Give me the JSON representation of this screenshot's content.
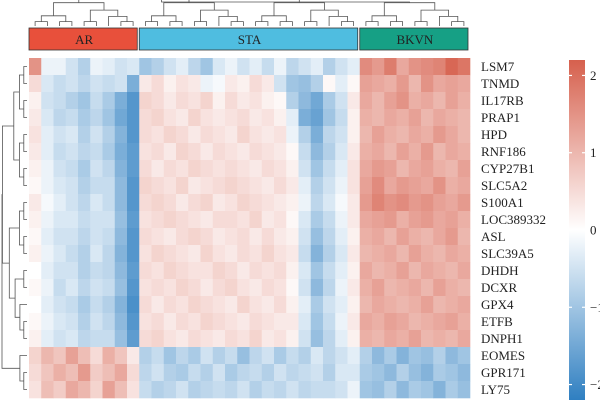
{
  "chart_data": {
    "type": "heatmap",
    "title": "",
    "groups": [
      {
        "label": "AR",
        "color": "#e8503b",
        "count": 9
      },
      {
        "label": "STA",
        "color": "#4fbde0",
        "count": 18
      },
      {
        "label": "BKVN",
        "color": "#16a085",
        "count": 9
      }
    ],
    "rows": [
      "LSM7",
      "TNMD",
      "IL17RB",
      "PRAP1",
      "HPD",
      "RNF186",
      "CYP27B1",
      "SLC5A2",
      "S100A1",
      "LOC389332",
      "ASL",
      "SLC39A5",
      "DHDH",
      "DCXR",
      "GPX4",
      "ETFB",
      "DNPH1",
      "EOMES",
      "GPR171",
      "LY75"
    ],
    "columns": 36,
    "zlim": [
      -2.2,
      2.2
    ],
    "colorbar": {
      "ticks": [
        "2",
        "1",
        "0",
        "−1",
        "−2"
      ],
      "tick_values": [
        2,
        1,
        0,
        -1,
        -2
      ],
      "colors": {
        "low": "#2f7fc1",
        "mid": "#ffffff",
        "high": "#d6604d"
      }
    },
    "values": [
      [
        1.5,
        -0.2,
        -0.2,
        -0.5,
        -0.8,
        -0.2,
        -0.3,
        -0.5,
        -0.4,
        -1.0,
        -0.8,
        -0.5,
        -0.3,
        -0.7,
        -1.0,
        -0.4,
        -0.2,
        -0.5,
        -0.3,
        -0.6,
        -0.2,
        -0.7,
        -0.5,
        -0.3,
        -0.8,
        -0.5,
        -0.3,
        1.6,
        1.4,
        1.8,
        1.2,
        1.5,
        1.6,
        1.7,
        2.1,
        1.9
      ],
      [
        0.5,
        -0.4,
        -0.6,
        -0.5,
        -0.7,
        -0.5,
        -0.6,
        -0.5,
        -1.4,
        0.3,
        0.5,
        0.2,
        0.4,
        0.3,
        -0.2,
        -0.1,
        0.3,
        0.2,
        0.5,
        0.3,
        -0.5,
        -1.0,
        -1.1,
        -0.8,
        0.1,
        -0.3,
        0.1,
        1.3,
        1.2,
        1.1,
        1.4,
        1.0,
        1.5,
        1.2,
        1.3,
        1.2
      ],
      [
        0.2,
        -0.5,
        -0.6,
        -0.8,
        -1.0,
        -0.6,
        -0.9,
        -1.4,
        -1.8,
        0.6,
        0.5,
        0.3,
        0.5,
        0.4,
        0.6,
        0.2,
        0.5,
        0.3,
        0.4,
        0.2,
        0.1,
        -0.8,
        -1.2,
        -1.5,
        -0.9,
        -0.5,
        0.3,
        1.2,
        1.0,
        1.3,
        1.5,
        1.1,
        1.2,
        1.0,
        1.3,
        1.1
      ],
      [
        0.3,
        -0.4,
        -0.7,
        -0.6,
        -0.9,
        -0.7,
        -1.0,
        -1.5,
        -1.8,
        0.5,
        0.6,
        0.4,
        0.3,
        0.6,
        0.4,
        0.3,
        0.4,
        0.5,
        0.3,
        0.4,
        0.2,
        -0.3,
        -1.4,
        -1.6,
        -1.0,
        -0.6,
        0.2,
        1.1,
        1.0,
        1.2,
        1.1,
        1.3,
        1.0,
        1.2,
        1.1,
        1.0
      ],
      [
        0.4,
        -0.3,
        -0.5,
        -0.4,
        -0.8,
        -0.5,
        -0.8,
        -1.3,
        -1.8,
        0.5,
        0.4,
        0.6,
        0.5,
        0.3,
        0.5,
        0.4,
        0.3,
        0.6,
        0.4,
        0.3,
        0.4,
        -0.2,
        -0.8,
        -1.4,
        -0.7,
        -0.5,
        0.2,
        1.0,
        1.3,
        1.1,
        1.0,
        1.2,
        1.1,
        1.4,
        1.2,
        1.0
      ],
      [
        0.3,
        -0.3,
        -0.6,
        -0.5,
        -0.7,
        -0.6,
        -0.9,
        -1.4,
        -1.7,
        0.4,
        0.5,
        0.3,
        0.6,
        0.5,
        0.3,
        0.5,
        0.4,
        0.3,
        0.5,
        0.4,
        0.3,
        0.1,
        -0.6,
        -1.2,
        -0.8,
        -0.4,
        0.3,
        1.1,
        1.2,
        1.0,
        1.3,
        1.1,
        1.4,
        1.0,
        1.2,
        1.1
      ],
      [
        0.2,
        -0.2,
        -0.5,
        -0.6,
        -0.9,
        -0.5,
        -0.7,
        -1.3,
        -1.7,
        0.5,
        0.3,
        0.5,
        0.4,
        0.6,
        0.5,
        0.4,
        0.5,
        0.4,
        0.3,
        0.5,
        0.4,
        0.2,
        -0.5,
        -1.0,
        -0.6,
        -0.3,
        0.4,
        1.2,
        1.4,
        1.3,
        1.0,
        1.2,
        1.3,
        1.1,
        1.0,
        1.3
      ],
      [
        0.1,
        -0.2,
        -0.4,
        -0.5,
        -0.8,
        -0.6,
        -0.6,
        -1.2,
        -1.8,
        0.6,
        0.5,
        0.4,
        0.6,
        0.3,
        0.4,
        0.5,
        0.6,
        0.5,
        0.4,
        0.3,
        0.5,
        0.3,
        -0.3,
        -0.8,
        -0.5,
        -0.2,
        0.4,
        1.3,
        1.6,
        1.2,
        1.4,
        1.3,
        1.2,
        1.5,
        1.1,
        1.2
      ],
      [
        0.3,
        -0.1,
        -0.3,
        -0.5,
        -0.7,
        -0.4,
        -0.6,
        -1.2,
        -1.8,
        0.5,
        0.6,
        0.5,
        0.3,
        0.5,
        0.6,
        0.3,
        0.4,
        0.6,
        0.5,
        0.4,
        0.3,
        0.2,
        -0.2,
        -0.7,
        -0.4,
        -0.1,
        0.3,
        1.4,
        1.7,
        1.5,
        1.6,
        1.4,
        1.5,
        1.3,
        1.2,
        1.4
      ],
      [
        0.2,
        -0.2,
        -0.4,
        -0.4,
        -0.6,
        -0.5,
        -0.5,
        -1.1,
        -1.7,
        0.4,
        0.5,
        0.6,
        0.5,
        0.4,
        0.3,
        0.5,
        0.5,
        0.4,
        0.6,
        0.3,
        0.4,
        0.1,
        -0.4,
        -0.9,
        -0.6,
        -0.2,
        0.3,
        1.2,
        1.3,
        1.4,
        1.1,
        1.3,
        1.4,
        1.2,
        1.3,
        1.1
      ],
      [
        0.1,
        -0.3,
        -0.5,
        -0.5,
        -0.7,
        -0.5,
        -0.6,
        -1.2,
        -1.8,
        0.5,
        0.4,
        0.3,
        0.5,
        0.6,
        0.5,
        0.3,
        0.4,
        0.5,
        0.3,
        0.5,
        0.3,
        0.2,
        -0.5,
        -1.1,
        -0.7,
        -0.3,
        0.2,
        1.1,
        1.2,
        1.0,
        1.3,
        1.1,
        1.0,
        1.2,
        1.4,
        1.0
      ],
      [
        0.2,
        -0.2,
        -0.4,
        -0.6,
        -0.8,
        -0.4,
        -0.7,
        -1.3,
        -1.8,
        0.4,
        0.6,
        0.5,
        0.4,
        0.3,
        0.6,
        0.4,
        0.3,
        0.5,
        0.4,
        0.6,
        0.4,
        0.3,
        -0.6,
        -1.3,
        -0.8,
        -0.4,
        0.3,
        1.0,
        1.1,
        1.2,
        1.0,
        1.3,
        1.1,
        1.0,
        1.2,
        1.1
      ],
      [
        0.0,
        -0.3,
        -0.5,
        -0.5,
        -0.8,
        -0.6,
        -0.7,
        -1.2,
        -1.7,
        0.5,
        0.4,
        0.6,
        0.5,
        0.4,
        0.4,
        0.6,
        0.5,
        0.3,
        0.5,
        0.4,
        0.5,
        0.2,
        -0.4,
        -1.0,
        -0.6,
        -0.3,
        0.2,
        1.2,
        1.0,
        1.1,
        1.3,
        1.0,
        1.2,
        1.1,
        1.0,
        1.2
      ],
      [
        0.1,
        -0.2,
        -0.6,
        -0.4,
        -0.7,
        -0.5,
        -0.6,
        -1.1,
        -1.8,
        0.4,
        0.5,
        0.4,
        0.6,
        0.5,
        0.3,
        0.5,
        0.6,
        0.4,
        0.3,
        0.5,
        0.4,
        0.1,
        -0.5,
        -1.2,
        -0.7,
        -0.2,
        0.3,
        1.1,
        1.3,
        1.0,
        1.1,
        1.2,
        1.0,
        1.3,
        1.1,
        1.0
      ],
      [
        0.0,
        -0.3,
        -0.5,
        -0.6,
        -0.9,
        -0.6,
        -0.8,
        -1.3,
        -1.9,
        0.5,
        0.3,
        0.5,
        0.4,
        0.6,
        0.5,
        0.4,
        0.3,
        0.6,
        0.4,
        0.3,
        0.5,
        0.2,
        -0.3,
        -0.9,
        -0.5,
        -0.3,
        0.2,
        1.0,
        1.2,
        1.1,
        1.0,
        1.1,
        1.3,
        1.0,
        1.1,
        1.2
      ],
      [
        0.1,
        -0.2,
        -0.4,
        -0.5,
        -0.8,
        -0.5,
        -0.7,
        -1.2,
        -1.8,
        0.4,
        0.5,
        0.3,
        0.5,
        0.4,
        0.6,
        0.5,
        0.4,
        0.3,
        0.5,
        0.4,
        0.3,
        0.3,
        -0.4,
        -1.0,
        -0.6,
        -0.2,
        0.3,
        1.2,
        1.1,
        1.3,
        1.2,
        1.0,
        1.1,
        1.2,
        1.3,
        1.1
      ],
      [
        0.2,
        -0.3,
        -0.5,
        -0.4,
        -0.7,
        -0.6,
        -0.6,
        -1.1,
        -1.7,
        0.5,
        0.6,
        0.4,
        0.3,
        0.5,
        0.4,
        0.3,
        0.5,
        0.4,
        0.6,
        0.3,
        0.4,
        0.2,
        -0.5,
        -1.1,
        -0.7,
        -0.3,
        0.2,
        1.1,
        1.0,
        1.2,
        1.1,
        1.3,
        1.0,
        1.1,
        1.0,
        1.2
      ],
      [
        0.6,
        1.0,
        0.8,
        1.3,
        0.9,
        0.5,
        1.1,
        0.8,
        0.3,
        -0.8,
        -0.6,
        -1.0,
        -0.7,
        -0.9,
        -0.5,
        -0.8,
        -0.6,
        -1.1,
        -0.7,
        -0.5,
        -0.9,
        -0.6,
        -0.8,
        -0.4,
        -0.7,
        -0.5,
        -0.3,
        -0.8,
        -1.2,
        -0.9,
        -1.3,
        -1.0,
        -1.1,
        -0.8,
        -1.2,
        -1.0
      ],
      [
        0.5,
        0.8,
        1.1,
        0.9,
        1.4,
        0.7,
        0.9,
        1.2,
        0.5,
        -0.7,
        -0.5,
        -0.8,
        -0.9,
        -0.6,
        -0.8,
        -0.5,
        -0.9,
        -0.7,
        -0.6,
        -0.8,
        -0.5,
        -0.7,
        -0.6,
        -0.5,
        -0.8,
        -0.4,
        -0.4,
        -0.9,
        -1.0,
        -1.2,
        -0.8,
        -1.1,
        -1.3,
        -0.9,
        -1.0,
        -1.2
      ],
      [
        0.4,
        0.9,
        0.7,
        1.2,
        1.0,
        0.6,
        1.3,
        0.9,
        0.4,
        -0.6,
        -0.8,
        -0.7,
        -0.5,
        -0.8,
        -0.7,
        -0.6,
        -0.7,
        -0.5,
        -0.8,
        -0.6,
        -0.7,
        -0.5,
        -0.7,
        -0.6,
        -0.6,
        -0.5,
        -0.2,
        -1.0,
        -1.1,
        -0.8,
        -1.2,
        -0.9,
        -1.0,
        -1.3,
        -0.9,
        -1.1
      ]
    ]
  }
}
